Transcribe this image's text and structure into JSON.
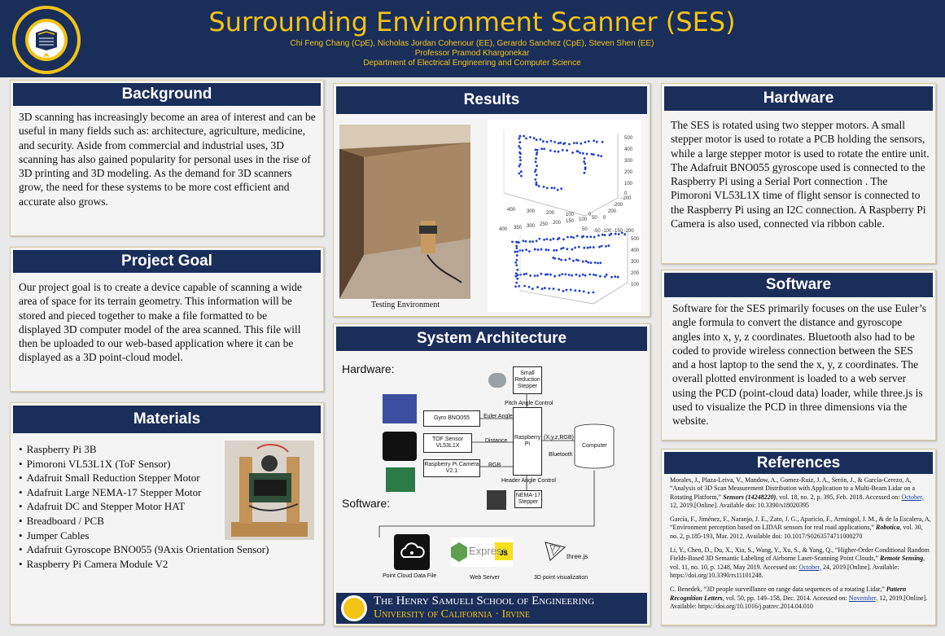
{
  "header": {
    "title": "Surrounding Environment Scanner (SES)",
    "authors": "Chi Feng Chang (CpE), Nicholas Jordan Cohenour (EE), Gerardo Sanchez (CpE), Steven Shen (EE)",
    "professor": "Professor Pramod Khargonekar",
    "department": "Department of Electrical Engineering  and Computer Science",
    "logo_text": "THE UNIVERSITY OF CALIFORNIA IRVINE"
  },
  "background": {
    "heading": "Background",
    "body": "3D scanning has increasingly become an area of interest and can be useful in many fields such as: architecture, agriculture, medicine, and security. Aside from commercial and industrial uses, 3D scanning has also gained popularity for personal uses in the rise of 3D printing and 3D modeling. As the demand for 3D scanners grow, the need for these systems to be more cost efficient and accurate also grows."
  },
  "goal": {
    "heading": "Project Goal",
    "body": "Our project goal is to create a device capable of scanning a wide area of space for its terrain geometry. This information will be stored and pieced together to make a file formatted to be displayed 3D computer model of the area scanned. This file will then be uploaded to our web-based application where it can be displayed as a 3D point-cloud model."
  },
  "materials": {
    "heading": "Materials",
    "items": [
      "Raspberry Pi 3B",
      "Pimoroni VL53L1X (ToF Sensor)",
      "Adafruit Small Reduction Stepper Motor",
      "Adafruit Large NEMA-17 Stepper Motor",
      "Adafruit DC and Stepper Motor HAT",
      "Breadboard / PCB",
      "Jumper Cables",
      "Adafruit Gyroscope BNO055 (9Axis Orientation Sensor)",
      "Raspberry Pi Camera Module V2"
    ]
  },
  "results": {
    "heading": "Results",
    "caption": "Testing Environment",
    "plot1": {
      "x_ticks": [
        "400",
        "300",
        "200",
        "100"
      ],
      "y_ticks": [
        "200",
        "100",
        "0",
        "-100",
        "-200"
      ],
      "z_ticks": [
        "500",
        "400",
        "300",
        "200",
        "100",
        "0"
      ],
      "y_extra": "−200",
      "x_extra": "200",
      "y_bottom": "0"
    },
    "plot2": {
      "top_ticks": [
        "400",
        "350",
        "300",
        "250",
        "200",
        "150",
        "100",
        "50"
      ],
      "top_right": "0",
      "right_top": "50",
      "right_seq": "-50 -100 -150 -200",
      "z_ticks": [
        "500",
        "400",
        "300",
        "200",
        "100"
      ]
    }
  },
  "arch": {
    "heading": "System Architecture",
    "hardware_label": "Hardware:",
    "software_label": "Software:",
    "gyro": "Gyro BNO055",
    "tof": "TOF Sensor VL53L1X",
    "cam": "Raspberry Pi Camera V2.1",
    "pi": "Raspberry Pi",
    "small_stepper": "Small Reduction Stepper",
    "nema": "NEMA-17 Stepper",
    "computer": "Computer",
    "euler": "Euler Angle",
    "distance": "Distance",
    "rgb": "RGB",
    "xyz": "(X,y,z,RGB)",
    "bluetooth": "Bluetooth",
    "pitch": "Pitch Angle Control",
    "headerctl": "Header Angle Control",
    "pcd": "Point Cloud Data File",
    "webserver": "Web Server",
    "viz": "3D point visualization",
    "express": "Express",
    "js": "JS",
    "three": "three.js",
    "footer_school": "The Henry Samueli School of Engineering",
    "footer_uni": "University of California · Irvine"
  },
  "hardware": {
    "heading": "Hardware",
    "body": "The SES is rotated using two stepper motors. A small stepper motor is used to rotate a PCB holding the sensors, while a large stepper motor is used to rotate the entire unit. The Adafruit BNO055 gyroscope used is connected to the Raspberry Pi using a Serial Port connection . The Pimoroni VL53L1X time of flight sensor is connected to the Raspberry Pi using an I2C connection. A Raspberry Pi Camera is also used, connected via ribbon cable."
  },
  "software": {
    "heading": "Software",
    "body": "Software for the SES  primarily focuses on the use Euler’s angle formula to convert the distance and gyroscope angles into x, y, z coordinates. Bluetooth also had to be coded to provide wireless connection between the SES and a host laptop to the send the x, y, z coordinates. The overall plotted environment is loaded to a web server using the PCD (point-cloud data) loader, while three.js is used to visualize the PCD in three dimensions via the website."
  },
  "references": {
    "heading": "References",
    "r1a": "Morales, J., Plaza-Leiva, V., Mandow, A., Gomez-Ruiz, J. A., Serón, J., & García-Cerezo, A, “Analysis of 3D Scan Measurement Distribution with Application to a Multi-Beam Lidar on a Rotating Platform,”",
    "r1j": "Sensors (14248220)",
    "r1b": ", vol. 18, no. 2, p. 395, Feb. 2018. Accessed on:",
    "r1u": "October,",
    "r1c": "12, 2019.[Online]. Available doi: 10.3390/s18020395",
    "r2a": "García, F., Jiménez, F., Naranjo, J. E., Zato, J. G., Aparicio, F., Armingol, J. M., & de la Escalera, A, “Environment perception based on LIDAR sensors for real road applications,”",
    "r2j": "Robotica",
    "r2b": ", vol. 30, no. 2, p.185-193, Mar. 2012. Available doi: 10.1017/S0263574711000270",
    "r3a": "Li, Y., Chen, D., Du, X., Xia, S., Wang, Y., Xu, S., & Yang, Q., “Higher-Order Conditional Random Fields-Based 3D Semantic Labeling of Airborne Laser-Scanning Point Clouds,”",
    "r3j": "Remote Sensing",
    "r3b": ", vol. 11, no. 10, p. 1248, May 2019. Accessed on:",
    "r3u": "October,",
    "r3c": "24, 2019.[Online]. Available: https://doi.org/10.3390/rs11101248.",
    "r4a": "C. Benedek, “3D people surveillance on range data sequences of a rotating Lidar,”",
    "r4j": "Pattern Recognition Letters",
    "r4b": ", vol. 50, pp. 149–158, Dec. 2014. Accessed on:",
    "r4u": "November,",
    "r4c": "12, 2019.[Online]. Available: https://doi.org/10.1016/j.patrec.2014.04.010"
  },
  "colors": {
    "navy": "#1a2e5a",
    "gold": "#f3c316",
    "panel": "#f4f4f4",
    "border": "#d8c9a0",
    "point_blue": "#1f3fd0"
  }
}
